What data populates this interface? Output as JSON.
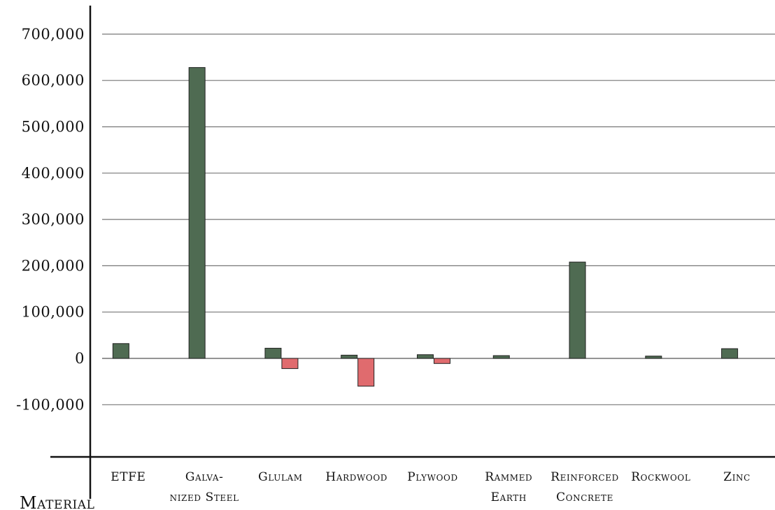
{
  "chart_data": {
    "type": "bar",
    "xlabel": "Material",
    "ylabel": "",
    "ylim": [
      -215000,
      740000
    ],
    "yticks": [
      700000,
      600000,
      500000,
      400000,
      300000,
      200000,
      100000,
      0,
      -100000
    ],
    "ytick_labels": [
      "700,000",
      "600,000",
      "500,000",
      "400,000",
      "300,000",
      "200,000",
      "100,000",
      "0",
      "-100,000"
    ],
    "grid": true,
    "categories": [
      [
        "ETFE"
      ],
      [
        "Galva-",
        "nized Steel"
      ],
      [
        "Glulam"
      ],
      [
        "Hardwood"
      ],
      [
        "Plywood"
      ],
      [
        "Rammed",
        "Earth"
      ],
      [
        "Reinforced",
        "Concrete"
      ],
      [
        "Rockwool"
      ],
      [
        "Zinc"
      ]
    ],
    "series": [
      {
        "color": "#4f6b52",
        "values": [
          32000,
          628000,
          22000,
          7000,
          8000,
          6000,
          208000,
          5000,
          21000
        ]
      },
      {
        "color": "#e06b6e",
        "values": [
          0,
          0,
          -22000,
          -60000,
          -11000,
          0,
          0,
          0,
          0
        ]
      }
    ]
  }
}
